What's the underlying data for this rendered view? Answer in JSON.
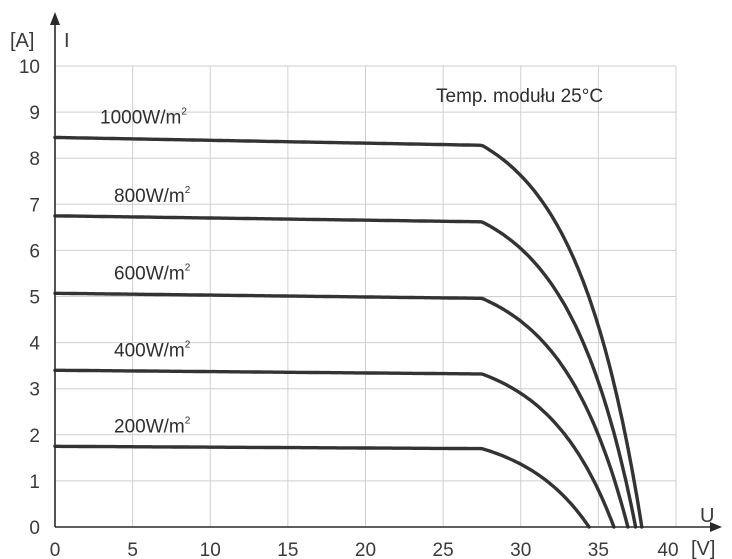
{
  "chart_data": {
    "type": "line",
    "x_axis": {
      "label": "U",
      "unit": "[V]",
      "range": [
        0,
        40
      ],
      "ticks": [
        0,
        5,
        10,
        15,
        20,
        25,
        30,
        35,
        40
      ]
    },
    "y_axis": {
      "label": "I",
      "unit": "[A]",
      "range": [
        0,
        10
      ],
      "ticks": [
        0,
        1,
        2,
        3,
        4,
        5,
        6,
        7,
        8,
        9,
        10
      ]
    },
    "grid": true,
    "annotation": {
      "text": "Temp. modułu 25°C"
    },
    "series": [
      {
        "name": "1000W/m",
        "name_sup": "2",
        "isc": 8.45,
        "knee_current": 8.28,
        "voc": 37.8
      },
      {
        "name": "800W/m",
        "name_sup": "2",
        "isc": 6.75,
        "knee_current": 6.62,
        "voc": 37.4
      },
      {
        "name": "600W/m",
        "name_sup": "2",
        "isc": 5.07,
        "knee_current": 4.96,
        "voc": 36.9
      },
      {
        "name": "400W/m",
        "name_sup": "2",
        "isc": 3.4,
        "knee_current": 3.32,
        "voc": 36.0
      },
      {
        "name": "200W/m",
        "name_sup": "2",
        "isc": 1.75,
        "knee_current": 1.7,
        "voc": 34.4
      }
    ],
    "line_color": "#333333"
  }
}
